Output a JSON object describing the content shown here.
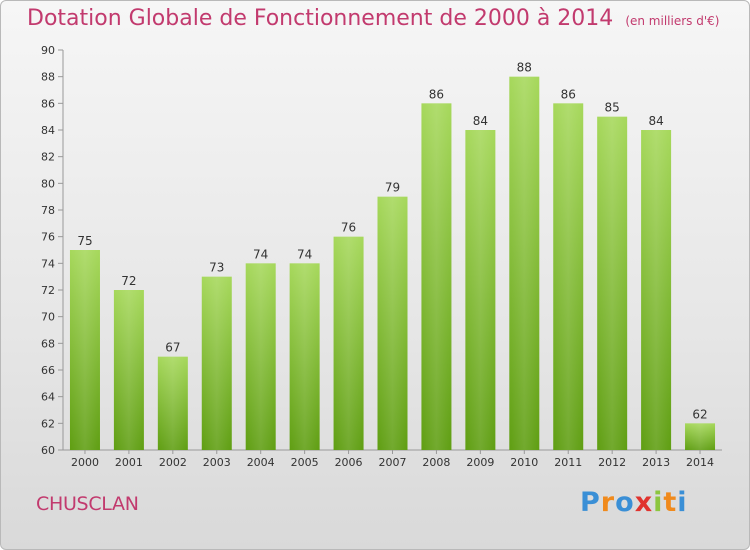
{
  "chart_data": {
    "type": "bar",
    "title": "Dotation Globale de Fonctionnement de 2000 à 2014",
    "subtitle": "(en milliers d'€)",
    "categories": [
      "2000",
      "2001",
      "2002",
      "2003",
      "2004",
      "2005",
      "2006",
      "2007",
      "2008",
      "2009",
      "2010",
      "2011",
      "2012",
      "2013",
      "2014"
    ],
    "values": [
      75,
      72,
      67,
      73,
      74,
      74,
      76,
      79,
      86,
      84,
      88,
      86,
      85,
      84,
      62
    ],
    "ylim": [
      60,
      90
    ],
    "yticks": [
      60,
      62,
      64,
      66,
      68,
      70,
      72,
      74,
      76,
      78,
      80,
      82,
      84,
      86,
      88,
      90
    ],
    "grid": false,
    "bar_color": "#8cc63f"
  },
  "footer": {
    "commune": "CHUSCLAN",
    "brand_letters": [
      "P",
      "r",
      "o",
      "x",
      "i",
      "t",
      "i"
    ],
    "brand_colors": [
      "#3a8fd6",
      "#f08a1c",
      "#3a8fd6",
      "#e0332e",
      "#8cc63f",
      "#f08a1c",
      "#3a8fd6"
    ]
  }
}
